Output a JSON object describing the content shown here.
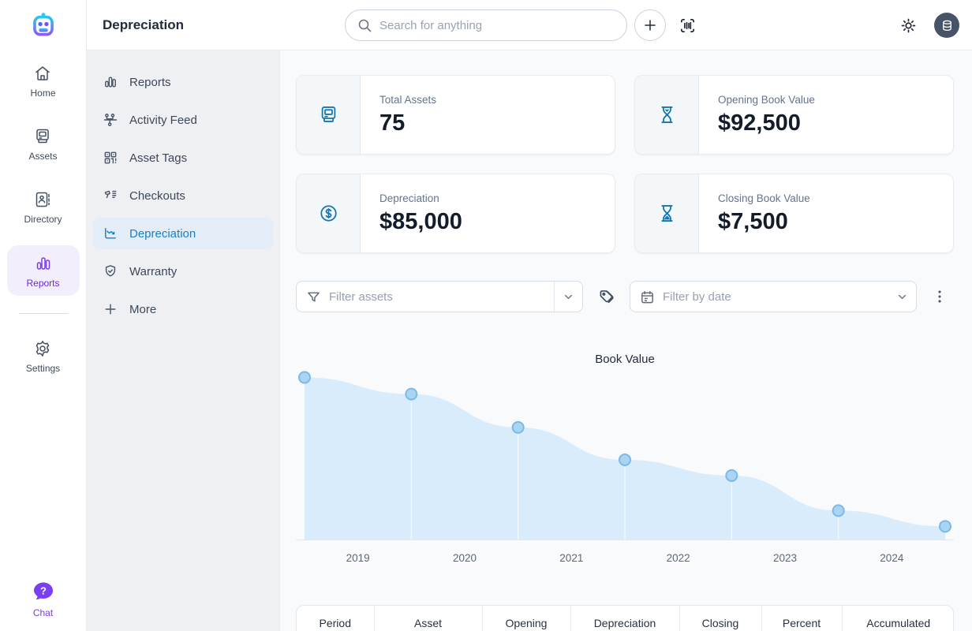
{
  "topbar": {
    "title": "Depreciation",
    "search_placeholder": "Search for anything"
  },
  "rail": {
    "items": [
      {
        "label": "Home",
        "icon": "home-icon",
        "active": false
      },
      {
        "label": "Assets",
        "icon": "computer-icon",
        "active": false
      },
      {
        "label": "Directory",
        "icon": "contact-card-icon",
        "active": false
      },
      {
        "label": "Reports",
        "icon": "bar-chart-icon",
        "active": true
      },
      {
        "label": "Settings",
        "icon": "gear-icon",
        "active": false
      }
    ],
    "chat": {
      "label": "Chat",
      "icon": "question-bubble-icon"
    }
  },
  "sidebar": {
    "items": [
      {
        "label": "Reports",
        "icon": "bar-chart-icon",
        "active": false
      },
      {
        "label": "Activity Feed",
        "icon": "network-icon",
        "active": false
      },
      {
        "label": "Asset Tags",
        "icon": "qr-code-icon",
        "active": false
      },
      {
        "label": "Checkouts",
        "icon": "barcode-scanner-icon",
        "active": false
      },
      {
        "label": "Depreciation",
        "icon": "chart-decline-icon",
        "active": true
      },
      {
        "label": "Warranty",
        "icon": "shield-check-icon",
        "active": false
      },
      {
        "label": "More",
        "icon": "plus-icon",
        "active": false
      }
    ]
  },
  "stats": [
    {
      "label": "Total Assets",
      "value": "75",
      "icon": "computer-icon"
    },
    {
      "label": "Opening Book Value",
      "value": "$92,500",
      "icon": "hourglass-start-icon"
    },
    {
      "label": "Depreciation",
      "value": "$85,000",
      "icon": "dollar-circle-icon"
    },
    {
      "label": "Closing Book Value",
      "value": "$7,500",
      "icon": "hourglass-end-icon"
    }
  ],
  "filters": {
    "assets_placeholder": "Filter assets",
    "date_placeholder": "Filter by date"
  },
  "chart_data": {
    "type": "area",
    "title": "Book Value",
    "x_labels": [
      "2019",
      "2020",
      "2021",
      "2022",
      "2023",
      "2024"
    ],
    "x_labels_position": "between-points",
    "values": [
      92500,
      83000,
      64000,
      45500,
      36500,
      16500,
      7500
    ],
    "ylim": [
      0,
      95000
    ],
    "grid": false,
    "legend": "none",
    "area_fill": "#d9ecfb",
    "point_fill": "#a9d4f2",
    "point_stroke": "#7db9e5",
    "axis_line_color": "#e2e8ef",
    "tick_label_color": "#5c6878"
  },
  "table": {
    "headers": [
      "Period",
      "Asset",
      "Opening",
      "Depreciation",
      "Closing",
      "Percent",
      "Accumulated"
    ]
  },
  "colors": {
    "accent_blue": "#1b7ec2",
    "accent_purple": "#7c3aed",
    "active_nav_bg": "#e2edf7",
    "active_rail_bg": "#f3eefb",
    "avatar_bg": "#475366",
    "sidebar_bg": "#eef0f4",
    "content_bg": "#f8fafc"
  }
}
